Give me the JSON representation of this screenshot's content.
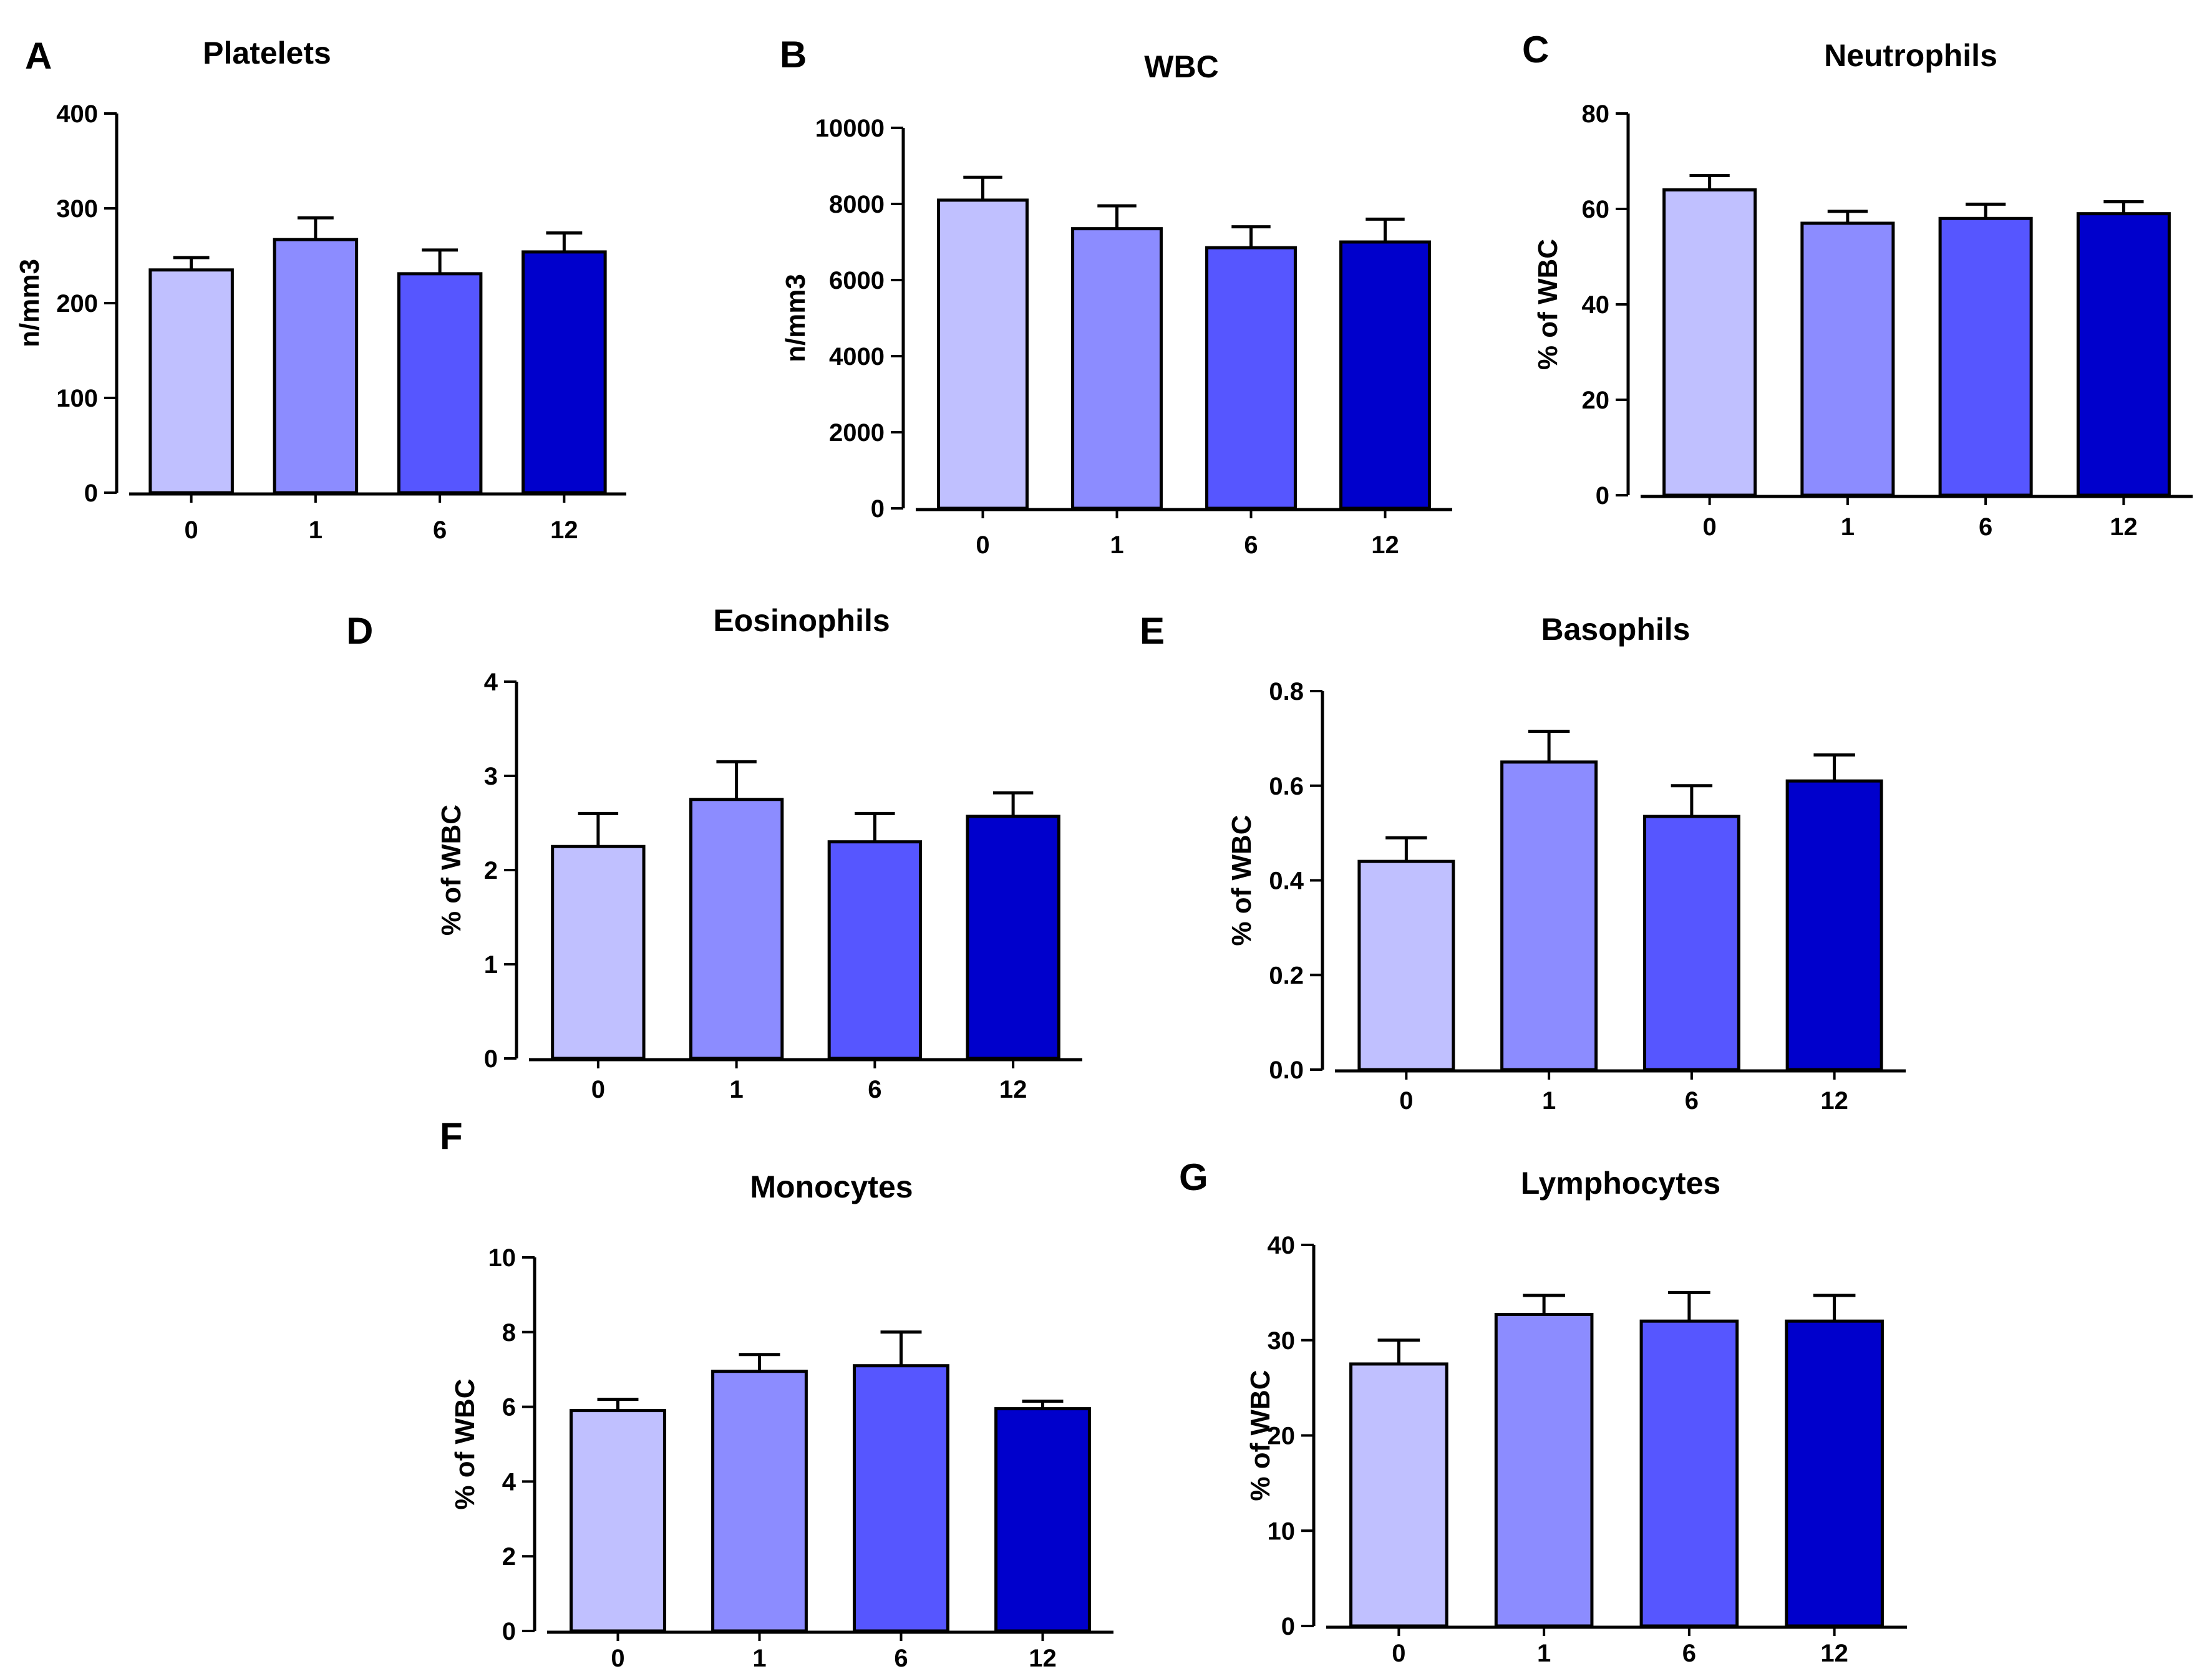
{
  "figure": {
    "colors": [
      "#c0c0ff",
      "#8c8cff",
      "#5656ff",
      "#0000cc"
    ],
    "stroke_color": "#000000"
  },
  "chart_data": [
    {
      "id": "A",
      "panel": "A",
      "type": "bar",
      "title": "Platelets",
      "categories": [
        "0",
        "1",
        "6",
        "12"
      ],
      "values": [
        235,
        267,
        231,
        254
      ],
      "errors": [
        13,
        23,
        25,
        20
      ],
      "ylabel": "n/mm3",
      "ylim": [
        0,
        400
      ],
      "yticks": [
        0,
        100,
        200,
        300,
        400
      ],
      "ytick_labels": [
        "0",
        "100",
        "200",
        "300",
        "400"
      ]
    },
    {
      "id": "B",
      "panel": "B",
      "type": "bar",
      "title": "WBC",
      "categories": [
        "0",
        "1",
        "6",
        "12"
      ],
      "values": [
        8100,
        7350,
        6850,
        7000
      ],
      "errors": [
        600,
        600,
        550,
        600
      ],
      "ylabel": "n/mm3",
      "ylim": [
        0,
        10000
      ],
      "yticks": [
        0,
        2000,
        4000,
        6000,
        8000,
        10000
      ],
      "ytick_labels": [
        "0",
        "2000",
        "4000",
        "6000",
        "8000",
        "10000"
      ]
    },
    {
      "id": "C",
      "panel": "C",
      "type": "bar",
      "title": "Neutrophils",
      "categories": [
        "0",
        "1",
        "6",
        "12"
      ],
      "values": [
        64,
        57,
        58,
        59
      ],
      "errors": [
        3,
        2.5,
        3,
        2.5
      ],
      "ylabel": "% of WBC",
      "ylim": [
        0,
        80
      ],
      "yticks": [
        0,
        20,
        40,
        60,
        80
      ],
      "ytick_labels": [
        "0",
        "20",
        "40",
        "60",
        "80"
      ]
    },
    {
      "id": "D",
      "panel": "D",
      "type": "bar",
      "title": "Eosinophils",
      "categories": [
        "0",
        "1",
        "6",
        "12"
      ],
      "values": [
        2.25,
        2.75,
        2.3,
        2.57
      ],
      "errors": [
        0.35,
        0.4,
        0.3,
        0.25
      ],
      "ylabel": "% of WBC",
      "ylim": [
        0,
        4
      ],
      "yticks": [
        0,
        1,
        2,
        3,
        4
      ],
      "ytick_labels": [
        "0",
        "1",
        "2",
        "3",
        "4"
      ]
    },
    {
      "id": "E",
      "panel": "E",
      "type": "bar",
      "title": "Basophils",
      "categories": [
        "0",
        "1",
        "6",
        "12"
      ],
      "values": [
        0.44,
        0.65,
        0.535,
        0.61
      ],
      "errors": [
        0.05,
        0.065,
        0.065,
        0.055
      ],
      "ylabel": "% of WBC",
      "ylim": [
        0,
        0.8
      ],
      "yticks": [
        0,
        0.2,
        0.4,
        0.6,
        0.8
      ],
      "ytick_labels": [
        "0.0",
        "0.2",
        "0.4",
        "0.6",
        "0.8"
      ]
    },
    {
      "id": "F",
      "panel": "F",
      "type": "bar",
      "title": "Monocytes",
      "categories": [
        "0",
        "1",
        "6",
        "12"
      ],
      "values": [
        5.9,
        6.95,
        7.1,
        5.95
      ],
      "errors": [
        0.3,
        0.45,
        0.9,
        0.2
      ],
      "ylabel": "% of WBC",
      "ylim": [
        0,
        10
      ],
      "yticks": [
        0,
        2,
        4,
        6,
        8,
        10
      ],
      "ytick_labels": [
        "0",
        "2",
        "4",
        "6",
        "8",
        "10"
      ]
    },
    {
      "id": "G",
      "panel": "G",
      "type": "bar",
      "title": "Lymphocytes",
      "categories": [
        "0",
        "1",
        "6",
        "12"
      ],
      "values": [
        27.5,
        32.7,
        32,
        32
      ],
      "errors": [
        2.5,
        2,
        3,
        2.7
      ],
      "ylabel": "% of WBC",
      "ylim": [
        0,
        40
      ],
      "yticks": [
        0,
        10,
        20,
        30,
        40
      ],
      "ytick_labels": [
        "0",
        "10",
        "20",
        "30",
        "40"
      ]
    }
  ]
}
